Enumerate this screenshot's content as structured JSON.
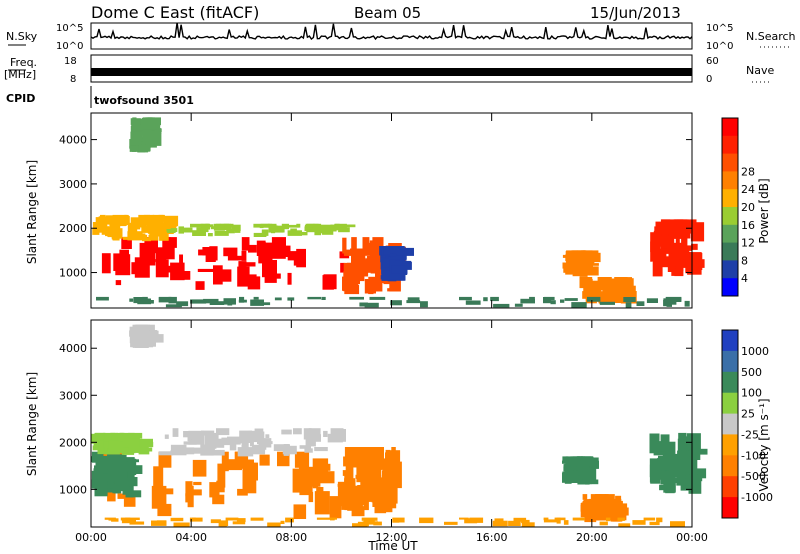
{
  "header": {
    "station": "Dome C East (fitACF)",
    "beam": "Beam 05",
    "date": "15/Jun/2013"
  },
  "top_panels": {
    "nsky_label": "N.Sky",
    "nsky_ticks": [
      "10^5",
      "10^0"
    ],
    "nsearch_label": "N.Search",
    "nsearch_ticks": [
      "10^5",
      "10^0"
    ],
    "freq_label": "Freq.",
    "freq_unit": "[MHz]",
    "freq_ticks": [
      "18",
      "8"
    ],
    "nave_label": "Nave",
    "nave_ticks": [
      "60",
      "0"
    ],
    "cpid_label": "CPID",
    "cpid_value": "twofsound 3501"
  },
  "colors": {
    "power": [
      "#0000ff",
      "#1e3fa8",
      "#3a7a58",
      "#5aa35a",
      "#9acd32",
      "#ffb000",
      "#ff8000",
      "#ff5000",
      "#ff2000",
      "#ff0000"
    ],
    "velocity": [
      "#2040c0",
      "#3a6fa8",
      "#3a8a5a",
      "#8bd040",
      "#c8c8c8",
      "#ffa000",
      "#ff8000",
      "#ff4000",
      "#ff0000"
    ]
  },
  "chart_data": [
    {
      "type": "heatmap",
      "name": "power",
      "ylabel": "Slant Range [km]",
      "yticks": [
        "1000",
        "2000",
        "3000",
        "4000"
      ],
      "ylim": [
        200,
        4600
      ],
      "xlim_hours": [
        0,
        24
      ],
      "xticks": [
        "00:00",
        "04:00",
        "08:00",
        "12:00",
        "16:00",
        "20:00",
        "00:00"
      ],
      "colorbar_label": "Power [dB]",
      "colorbar_ticks": [
        "4",
        "8",
        "12",
        "16",
        "20",
        "24",
        "28"
      ],
      "regions": [
        {
          "t0": 0.0,
          "t1": 10.2,
          "r0": 600,
          "r1": 1800,
          "level": 9
        },
        {
          "t0": 0.0,
          "t1": 3.0,
          "r0": 1700,
          "r1": 2300,
          "level": 5
        },
        {
          "t0": 3.0,
          "t1": 10.0,
          "r0": 1800,
          "r1": 2100,
          "level": 4
        },
        {
          "t0": 10.0,
          "t1": 12.0,
          "r0": 500,
          "r1": 1800,
          "level": 7
        },
        {
          "t0": 11.5,
          "t1": 12.3,
          "r0": 800,
          "r1": 1600,
          "level": 1
        },
        {
          "t0": 1.5,
          "t1": 2.3,
          "r0": 3700,
          "r1": 4500,
          "level": 3
        },
        {
          "t0": 18.8,
          "t1": 19.8,
          "r0": 900,
          "r1": 1500,
          "level": 6
        },
        {
          "t0": 22.3,
          "t1": 24.0,
          "r0": 900,
          "r1": 2200,
          "level": 8
        },
        {
          "t0": 19.5,
          "t1": 21.5,
          "r0": 300,
          "r1": 900,
          "level": 6
        },
        {
          "t0": 0.0,
          "t1": 24.0,
          "r0": 200,
          "r1": 450,
          "level": 2
        }
      ]
    },
    {
      "type": "heatmap",
      "name": "velocity",
      "ylabel": "Slant Range [km]",
      "yticks": [
        "1000",
        "2000",
        "3000",
        "4000"
      ],
      "ylim": [
        200,
        4600
      ],
      "xlim_hours": [
        0,
        24
      ],
      "xticks": [
        "00:00",
        "04:00",
        "08:00",
        "12:00",
        "16:00",
        "20:00",
        "00:00"
      ],
      "xlabel": "Time UT",
      "colorbar_label": "Velocity [m s⁻¹]",
      "colorbar_ticks": [
        "1000",
        "500",
        "100",
        "25",
        "-25",
        "-100",
        "-500",
        "-1000"
      ],
      "regions": [
        {
          "t0": 0.0,
          "t1": 10.3,
          "r0": 350,
          "r1": 1800,
          "level": 6
        },
        {
          "t0": 0.0,
          "t1": 1.5,
          "r0": 800,
          "r1": 1800,
          "level": 2
        },
        {
          "t0": 2.5,
          "t1": 10.0,
          "r0": 1700,
          "r1": 2300,
          "level": 4
        },
        {
          "t0": 0.0,
          "t1": 2.0,
          "r0": 1700,
          "r1": 2200,
          "level": 3
        },
        {
          "t0": 10.0,
          "t1": 12.0,
          "r0": 400,
          "r1": 1900,
          "level": 6
        },
        {
          "t0": 1.5,
          "t1": 2.3,
          "r0": 4000,
          "r1": 4500,
          "level": 4
        },
        {
          "t0": 18.8,
          "t1": 19.8,
          "r0": 1100,
          "r1": 1700,
          "level": 2
        },
        {
          "t0": 22.3,
          "t1": 24.0,
          "r0": 900,
          "r1": 2200,
          "level": 2
        },
        {
          "t0": 19.5,
          "t1": 21.0,
          "r0": 300,
          "r1": 900,
          "level": 6
        },
        {
          "t0": 0.0,
          "t1": 24.0,
          "r0": 200,
          "r1": 400,
          "level": 5
        }
      ]
    }
  ]
}
